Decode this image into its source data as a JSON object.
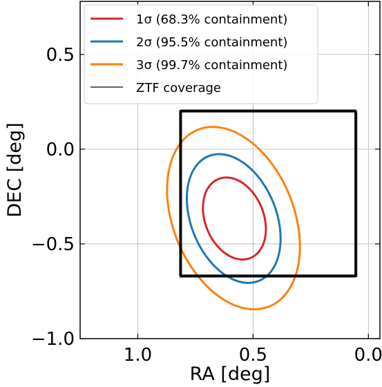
{
  "chart_data": {
    "type": "line",
    "title": "",
    "xlabel": "RA [deg]",
    "ylabel": "DEC [deg]",
    "xlim": [
      1.25,
      -0.05
    ],
    "ylim": [
      -1.0,
      0.78
    ],
    "x_ticks": [
      1.0,
      0.5,
      0.0
    ],
    "y_ticks": [
      -1.0,
      -0.5,
      0.0,
      0.5
    ],
    "x_tick_labels": [
      "1.0",
      "0.5",
      "0.0"
    ],
    "y_tick_labels": [
      "−1.0",
      "−0.5",
      "0.0",
      "0.5"
    ],
    "grid": true,
    "legend_position": "upper-left",
    "series": [
      {
        "name": "1σ (68.3% containment)",
        "kind": "ellipse",
        "color": "#d62728",
        "center": [
          0.581,
          -0.366
        ],
        "semi_axes": [
          0.127,
          0.225
        ],
        "angle_deg": -22
      },
      {
        "name": "2σ (95.5% containment)",
        "kind": "ellipse",
        "color": "#1f77b4",
        "center": [
          0.584,
          -0.366
        ],
        "semi_axes": [
          0.185,
          0.355
        ],
        "angle_deg": -22
      },
      {
        "name": "3σ (99.7% containment)",
        "kind": "ellipse",
        "color": "#ff7f0e",
        "center": [
          0.585,
          -0.364
        ],
        "semi_axes": [
          0.262,
          0.503
        ],
        "angle_deg": -22
      },
      {
        "name": "ZTF coverage",
        "kind": "polygon",
        "color": "#000000",
        "x": [
          0.815,
          0.055,
          0.055,
          0.815
        ],
        "y": [
          0.203,
          0.203,
          -0.668,
          -0.668
        ]
      }
    ]
  }
}
